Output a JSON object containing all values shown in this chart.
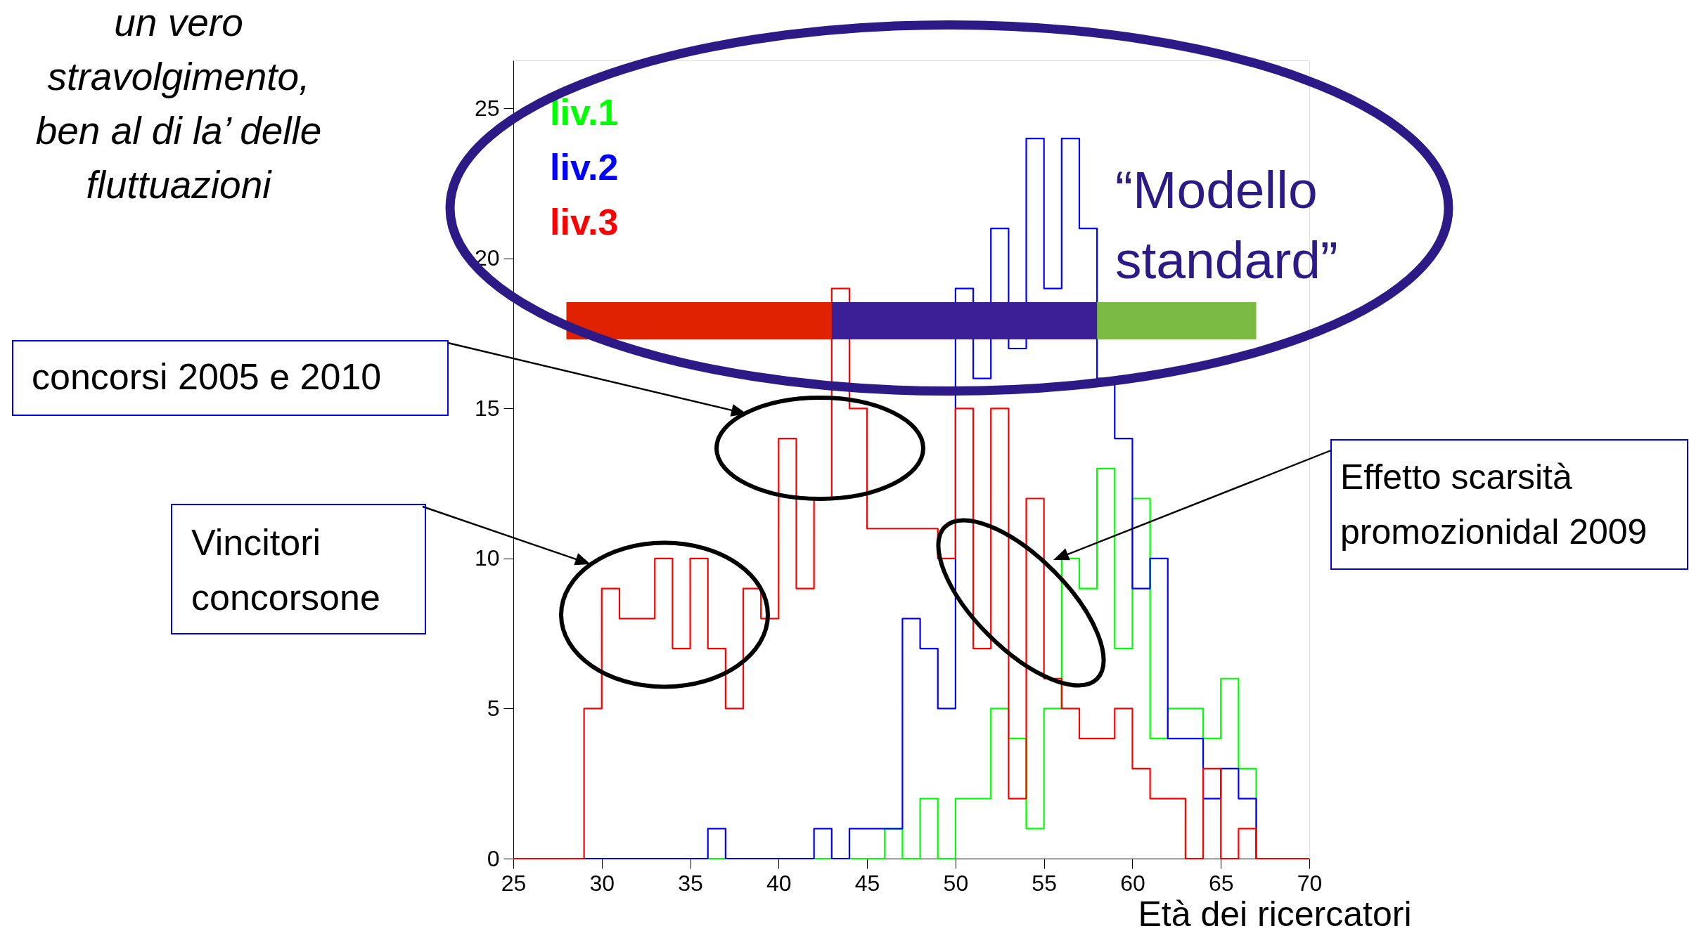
{
  "chart_data": {
    "type": "histogram",
    "xlabel": "Età dei ricercatori",
    "bins": [
      25,
      26,
      27,
      28,
      29,
      30,
      31,
      32,
      33,
      34,
      35,
      36,
      37,
      38,
      39,
      40,
      41,
      42,
      43,
      44,
      45,
      46,
      47,
      48,
      49,
      50,
      51,
      52,
      53,
      54,
      55,
      56,
      57,
      58,
      59,
      60,
      61,
      62,
      63,
      64,
      65,
      66,
      67,
      68,
      69,
      70
    ],
    "series": [
      {
        "name": "liv.1",
        "color": "#00ff00",
        "values": [
          0,
          0,
          0,
          0,
          0,
          0,
          0,
          0,
          0,
          0,
          0,
          0,
          0,
          0,
          0,
          0,
          0,
          0,
          0,
          0,
          0,
          1,
          0,
          2,
          0,
          2,
          2,
          5,
          4,
          1,
          5,
          10,
          9,
          13,
          7,
          12,
          4,
          5,
          5,
          4,
          6,
          3,
          0,
          0,
          0
        ]
      },
      {
        "name": "liv.2",
        "color": "#0000ff",
        "values": [
          0,
          0,
          0,
          0,
          0,
          0,
          0,
          0,
          0,
          0,
          0,
          1,
          0,
          0,
          0,
          0,
          0,
          1,
          0,
          1,
          1,
          1,
          8,
          7,
          5,
          19,
          16,
          21,
          17,
          24,
          19,
          24,
          21,
          16,
          14,
          9,
          10,
          4,
          4,
          2,
          3,
          2,
          0,
          0,
          0
        ]
      },
      {
        "name": "liv.3",
        "color": "#ff0000",
        "values": [
          0,
          0,
          0,
          0,
          5,
          9,
          8,
          8,
          10,
          7,
          10,
          7,
          5,
          9,
          8,
          14,
          9,
          12,
          19,
          15,
          11,
          11,
          11,
          11,
          10,
          15,
          7,
          15,
          2,
          12,
          6,
          5,
          4,
          4,
          5,
          3,
          2,
          2,
          0,
          3,
          0,
          1,
          0,
          0,
          0
        ]
      }
    ],
    "xlim": [
      25,
      70
    ],
    "xticks": [
      25,
      30,
      35,
      40,
      45,
      50,
      55,
      60,
      65,
      70
    ],
    "ylim": [
      0,
      26.6
    ],
    "yticks": [
      0,
      5,
      10,
      15,
      20,
      25
    ],
    "legend": "top left",
    "bands": [
      {
        "axis": "x",
        "from": 28,
        "to": 43,
        "color": "#e02200"
      },
      {
        "axis": "x",
        "from": 43,
        "to": 58,
        "color": "#3a1f96"
      },
      {
        "axis": "x",
        "from": 58,
        "to": 67,
        "color": "#7bbb44"
      }
    ],
    "annotations": [
      "un vero\nstravolgimento,\nben al di la’ delle\nfluttuazioni",
      "“Modello\nstandard”",
      "concorsi 2005 e 2010",
      "Vincitori\nconcorsone",
      "Effetto scarsità\npromozionidal 2009"
    ]
  }
}
